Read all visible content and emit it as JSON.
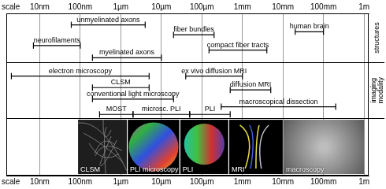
{
  "chart_data": {
    "type": "range",
    "log": "x",
    "grid": true,
    "axis_label": "scale",
    "xlim": [
      1.5e-09,
      1.3
    ],
    "xticks": [
      {
        "value": 1e-08,
        "label": "10nm"
      },
      {
        "value": 1e-07,
        "label": "100nm"
      },
      {
        "value": 1e-06,
        "label": "1µm"
      },
      {
        "value": 1e-05,
        "label": "10µm"
      },
      {
        "value": 0.0001,
        "label": "100µm"
      },
      {
        "value": 0.001,
        "label": "1mm"
      },
      {
        "value": 0.01,
        "label": "10mm"
      },
      {
        "value": 0.1,
        "label": "100mm"
      },
      {
        "value": 1,
        "label": "1m"
      }
    ],
    "panels": [
      {
        "title": "structures",
        "items": [
          {
            "name": "unmyelinated axons",
            "range": [
              6e-08,
              4e-06
            ]
          },
          {
            "name": "neurofilaments",
            "range": [
              7e-09,
              1e-07
            ]
          },
          {
            "name": "myelinated axons",
            "range": [
              2e-07,
              1e-05
            ]
          },
          {
            "name": "fiber bundles",
            "range": [
              2e-05,
              0.0002
            ]
          },
          {
            "name": "compact fiber tracts",
            "range": [
              0.00015,
              0.004
            ]
          },
          {
            "name": "human brain",
            "range": [
              0.02,
              0.1
            ]
          }
        ]
      },
      {
        "title": "imaging modality",
        "items": [
          {
            "name": "electron microscopy",
            "range": [
              2e-09,
              5e-06
            ]
          },
          {
            "name": "ex vivo diffusion MRI",
            "range": [
              4e-05,
              0.001
            ]
          },
          {
            "name": "CLSM",
            "range": [
              2e-07,
              5e-06
            ]
          },
          {
            "name": "diffusion MRI",
            "range": [
              0.0005,
              0.005
            ]
          },
          {
            "name": "conventional light microscopy",
            "range": [
              2e-07,
              2e-05
            ]
          },
          {
            "name": "macroscopical dissection",
            "range": [
              0.0003,
              0.2
            ]
          },
          {
            "name": "MOST",
            "range": [
              3e-07,
              2e-06
            ]
          },
          {
            "name": "microsc. PLI",
            "range": [
              2e-06,
              5e-05
            ]
          },
          {
            "name": "PLI",
            "range": [
              5e-05,
              0.0005
            ]
          }
        ]
      }
    ],
    "images": [
      "CLSM",
      "PLI microscopy",
      "PLI",
      "MRI",
      "macroscopy"
    ]
  }
}
